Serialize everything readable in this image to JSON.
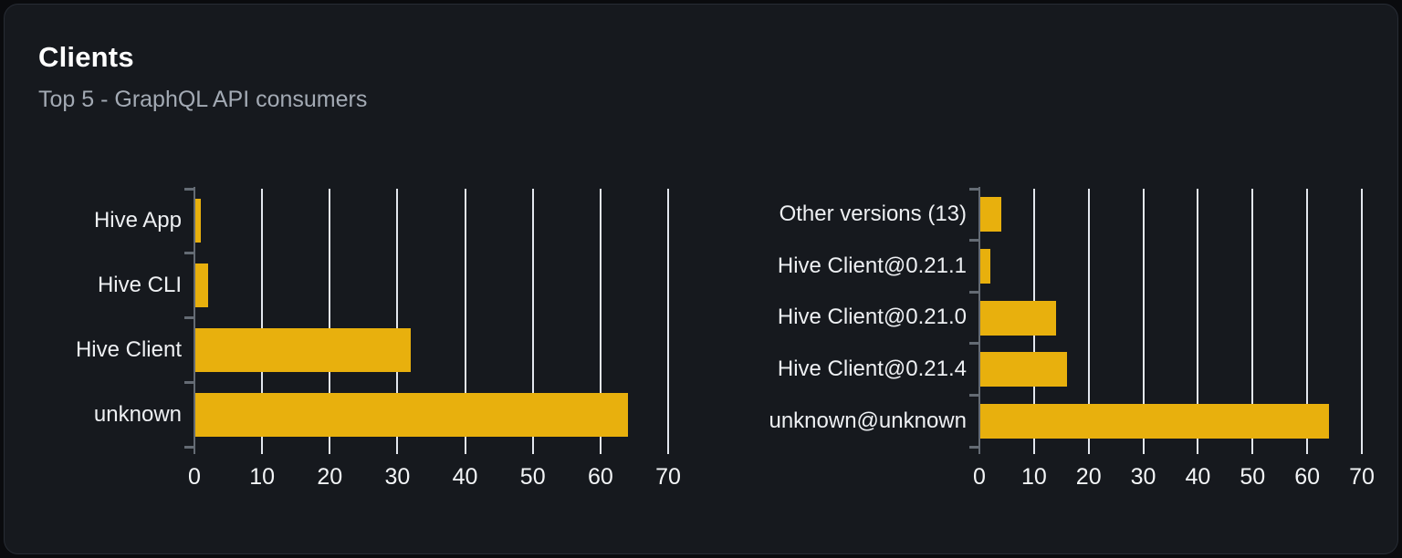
{
  "panel": {
    "title": "Clients",
    "subtitle": "Top 5 - GraphQL API consumers"
  },
  "colors": {
    "page_bg": "#0a0b0e",
    "card_bg": "#16191e",
    "card_border": "#272c34",
    "title": "#ffffff",
    "subtitle": "#a3aab4",
    "bar": "#e8b00d",
    "gridline": "#e3e7ee",
    "axis": "#646b74",
    "category_label": "#eef0f3",
    "tick_label": "#f3f5f7"
  },
  "chart_data": [
    {
      "type": "bar",
      "orientation": "horizontal",
      "name": "clients",
      "categories": [
        "Hive App",
        "Hive CLI",
        "Hive Client",
        "unknown"
      ],
      "values": [
        1,
        2,
        32,
        64
      ],
      "xlim": [
        0,
        70
      ],
      "xticks": [
        0,
        10,
        20,
        30,
        40,
        50,
        60,
        70
      ],
      "grid": true,
      "legend": "none",
      "bar_color": "#e8b00d"
    },
    {
      "type": "bar",
      "orientation": "horizontal",
      "name": "client-versions",
      "categories": [
        "Other versions (13)",
        "Hive Client@0.21.1",
        "Hive Client@0.21.0",
        "Hive Client@0.21.4",
        "unknown@unknown"
      ],
      "values": [
        4,
        2,
        14,
        16,
        64
      ],
      "xlim": [
        0,
        70
      ],
      "xticks": [
        0,
        10,
        20,
        30,
        40,
        50,
        60,
        70
      ],
      "grid": true,
      "legend": "none",
      "bar_color": "#e8b00d"
    }
  ]
}
